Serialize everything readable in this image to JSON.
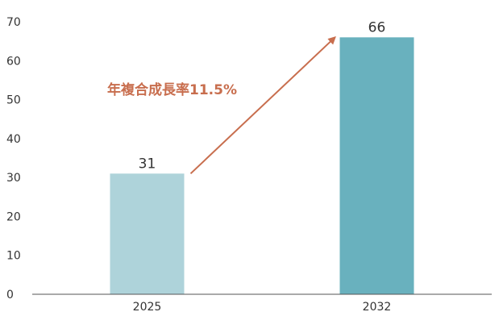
{
  "chart_data": {
    "type": "bar",
    "title": "",
    "xlabel": "",
    "ylabel": "",
    "categories": [
      "2025",
      "2032"
    ],
    "values": [
      31,
      66
    ],
    "data_labels": [
      "31",
      "66"
    ],
    "ylim": [
      0,
      70
    ],
    "yticks": [
      0,
      10,
      20,
      30,
      40,
      50,
      60,
      70
    ],
    "grid": false,
    "legend": "none",
    "bar_colors": [
      "#aed3da",
      "#69b1be"
    ],
    "annotation": {
      "text": "年複合成長率11.5%",
      "color": "#c86e4e",
      "from_category": "2025",
      "to_category": "2032"
    },
    "axis_color": "#555555"
  }
}
